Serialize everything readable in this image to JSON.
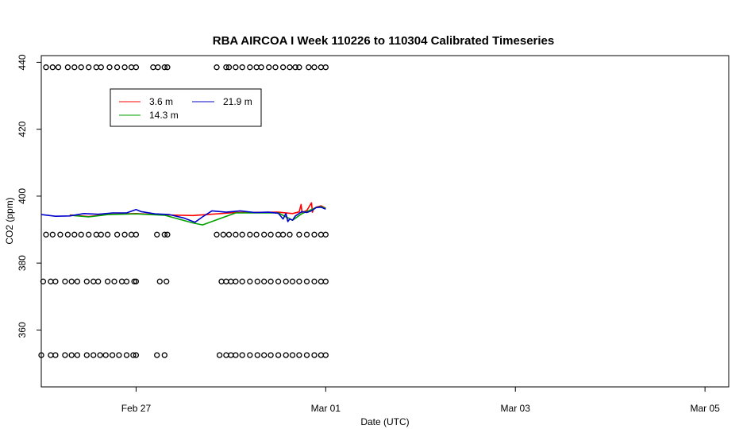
{
  "chart_data": {
    "type": "line",
    "title": "RBA AIRCOA I  Week 110226 to 110304  Calibrated Timeseries",
    "xlabel": "Date (UTC)",
    "ylabel": "CO2 (ppm)",
    "xlim": [
      0,
      7.25
    ],
    "ylim": [
      343,
      442
    ],
    "x_ticks": [
      {
        "value": 1,
        "label": "Feb 27"
      },
      {
        "value": 3,
        "label": "Mar 01"
      },
      {
        "value": 5,
        "label": "Mar 03"
      },
      {
        "value": 7,
        "label": "Mar 05"
      }
    ],
    "y_ticks": [
      {
        "value": 360,
        "label": "360"
      },
      {
        "value": 380,
        "label": "380"
      },
      {
        "value": 400,
        "label": "400"
      },
      {
        "value": 420,
        "label": "420"
      },
      {
        "value": 440,
        "label": "440"
      }
    ],
    "grid": false,
    "legend": {
      "placement": "top-left",
      "entries": [
        {
          "name": "3.6 m",
          "color": "#ff0000"
        },
        {
          "name": "14.3 m",
          "color": "#00a000"
        },
        {
          "name": "21.9 m",
          "color": "#0000cc"
        }
      ]
    },
    "series": [
      {
        "name": "3.6 m",
        "color": "#ff0000",
        "x": [
          0.3,
          0.5,
          0.7,
          1.0,
          1.3,
          1.6,
          2.05,
          2.5,
          2.65,
          2.72,
          2.74,
          2.75,
          2.8,
          2.85,
          2.86,
          2.87,
          2.9,
          2.95,
          3.0
        ],
        "y": [
          394.4,
          393.9,
          394.6,
          394.8,
          394.4,
          394.2,
          395.1,
          395.2,
          394.8,
          395.3,
          397.5,
          395.1,
          395.7,
          398.0,
          395.2,
          396.2,
          396.7,
          397.1,
          396.4
        ]
      },
      {
        "name": "14.3 m",
        "color": "#00a000",
        "x": [
          0.3,
          0.5,
          0.7,
          1.0,
          1.3,
          1.6,
          1.7,
          2.05,
          2.5,
          2.65,
          2.75,
          2.8,
          2.9,
          2.95,
          3.0
        ],
        "y": [
          394.3,
          393.8,
          394.5,
          394.7,
          394.3,
          392.0,
          391.4,
          395.0,
          395.0,
          392.8,
          394.8,
          395.4,
          396.6,
          396.9,
          396.3
        ]
      },
      {
        "name": "21.9 m",
        "color": "#0000cc",
        "x": [
          0.0,
          0.15,
          0.3,
          0.45,
          0.6,
          0.75,
          0.9,
          1.0,
          1.05,
          1.2,
          1.35,
          1.5,
          1.62,
          1.7,
          1.8,
          1.95,
          2.1,
          2.25,
          2.4,
          2.5,
          2.55,
          2.58,
          2.6,
          2.62,
          2.65,
          2.68,
          2.75,
          2.8,
          2.85,
          2.9,
          2.95,
          3.0
        ],
        "y": [
          394.5,
          394.0,
          394.1,
          394.8,
          394.6,
          395.0,
          395.0,
          396.0,
          395.4,
          394.7,
          394.5,
          393.5,
          392.2,
          393.8,
          395.6,
          395.2,
          395.6,
          395.1,
          395.2,
          394.9,
          393.2,
          394.8,
          392.4,
          393.2,
          392.8,
          394.1,
          395.4,
          395.1,
          395.6,
          396.6,
          396.7,
          396.1
        ]
      }
    ],
    "point_rows": [
      {
        "y": 438.5,
        "x": [
          0.05,
          0.12,
          0.18,
          0.28,
          0.35,
          0.42,
          0.5,
          0.58,
          0.63,
          0.72,
          0.8,
          0.88,
          0.95,
          1.0,
          1.18,
          1.23,
          1.3,
          1.33,
          1.85,
          1.95,
          1.98,
          2.05,
          2.12,
          2.2,
          2.27,
          2.32,
          2.4,
          2.47,
          2.55,
          2.62,
          2.68,
          2.72,
          2.82,
          2.88,
          2.95,
          3.0
        ]
      },
      {
        "y": 388.5,
        "x": [
          0.05,
          0.12,
          0.2,
          0.28,
          0.35,
          0.42,
          0.5,
          0.58,
          0.63,
          0.7,
          0.8,
          0.88,
          0.95,
          1.0,
          1.22,
          1.3,
          1.33,
          1.85,
          1.92,
          1.98,
          2.05,
          2.12,
          2.2,
          2.27,
          2.35,
          2.42,
          2.5,
          2.55,
          2.62,
          2.72,
          2.8,
          2.88,
          2.95,
          3.0
        ]
      },
      {
        "y": 374.5,
        "x": [
          0.02,
          0.1,
          0.15,
          0.25,
          0.32,
          0.38,
          0.48,
          0.55,
          0.6,
          0.7,
          0.77,
          0.85,
          0.9,
          0.98,
          1.0,
          1.25,
          1.32,
          1.9,
          1.95,
          2.0,
          2.05,
          2.12,
          2.2,
          2.28,
          2.35,
          2.42,
          2.5,
          2.58,
          2.65,
          2.72,
          2.8,
          2.88,
          2.95,
          3.0
        ]
      },
      {
        "y": 352.5,
        "x": [
          0.0,
          0.1,
          0.15,
          0.25,
          0.32,
          0.38,
          0.48,
          0.55,
          0.62,
          0.68,
          0.75,
          0.82,
          0.9,
          0.97,
          1.0,
          1.22,
          1.3,
          1.88,
          1.95,
          2.0,
          2.05,
          2.12,
          2.2,
          2.28,
          2.35,
          2.42,
          2.5,
          2.58,
          2.65,
          2.72,
          2.8,
          2.88,
          2.95,
          3.0
        ]
      }
    ]
  }
}
